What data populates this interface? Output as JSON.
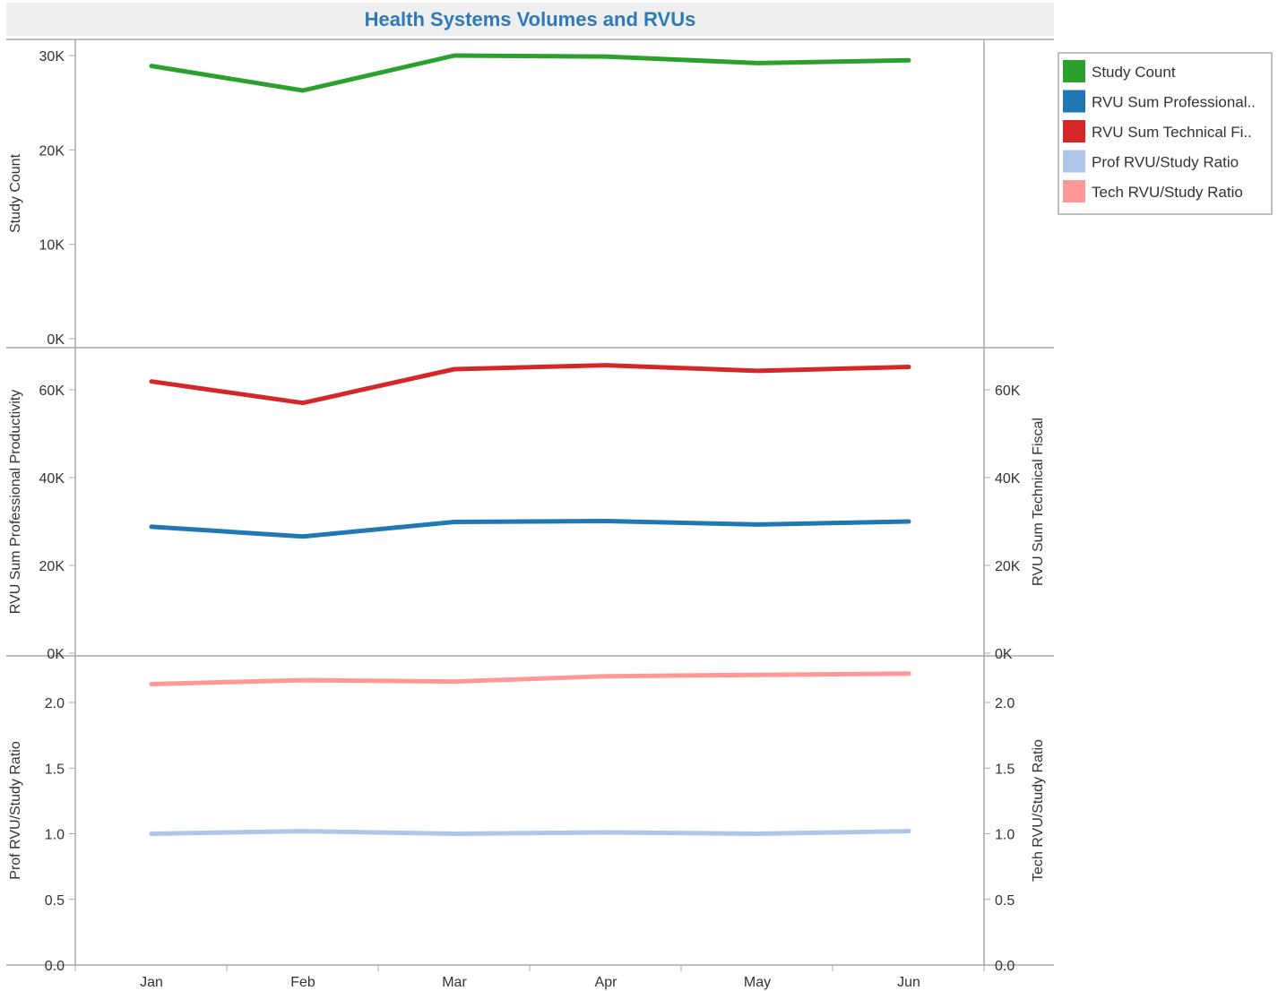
{
  "chart_data": {
    "type": "line",
    "title": "Health Systems Volumes and RVUs",
    "title_color": "#2e7ab8",
    "x": [
      "Jan",
      "Feb",
      "Mar",
      "Apr",
      "May",
      "Jun"
    ],
    "panels": [
      {
        "id": "volume",
        "left_axis": {
          "label": "Study Count",
          "ylim": [
            0,
            30000
          ],
          "ticks": [
            0,
            10000,
            20000,
            30000
          ],
          "tick_labels": [
            "0K",
            "10K",
            "20K",
            "30K"
          ]
        },
        "right_axis": null,
        "series": [
          {
            "name": "Study Count",
            "axis": "left",
            "color": "#2ca02c",
            "values": [
              28900,
              26300,
              30000,
              29900,
              29200,
              29500
            ]
          }
        ]
      },
      {
        "id": "rvu",
        "left_axis": {
          "label": "RVU Sum Professional Productivity",
          "ylim": [
            0,
            60000
          ],
          "ticks": [
            0,
            20000,
            40000,
            60000
          ],
          "tick_labels": [
            "0K",
            "20K",
            "40K",
            "60K"
          ]
        },
        "right_axis": {
          "label": "RVU Sum Technical Fiscal",
          "ylim": [
            0,
            60000
          ],
          "ticks": [
            0,
            20000,
            40000,
            60000
          ],
          "tick_labels": [
            "0K",
            "20K",
            "40K",
            "60K"
          ]
        },
        "series": [
          {
            "name": "RVU Sum Professional..",
            "axis": "left",
            "color": "#1f77b4",
            "values": [
              28800,
              26600,
              29900,
              30100,
              29300,
              30000
            ]
          },
          {
            "name": "RVU Sum Technical Fi..",
            "axis": "right",
            "color": "#d62728",
            "values": [
              61900,
              57000,
              64700,
              65600,
              64300,
              65200
            ]
          }
        ]
      },
      {
        "id": "ratio",
        "left_axis": {
          "label": "Prof RVU/Study Ratio",
          "ylim": [
            0,
            2.0
          ],
          "ticks": [
            0,
            0.5,
            1.0,
            1.5,
            2.0
          ],
          "tick_labels": [
            "0.0",
            "0.5",
            "1.0",
            "1.5",
            "2.0"
          ]
        },
        "right_axis": {
          "label": "Tech RVU/Study Ratio",
          "ylim": [
            0,
            2.0
          ],
          "ticks": [
            0,
            0.5,
            1.0,
            1.5,
            2.0
          ],
          "tick_labels": [
            "0.0",
            "0.5",
            "1.0",
            "1.5",
            "2.0"
          ]
        },
        "series": [
          {
            "name": "Prof RVU/Study Ratio",
            "axis": "left",
            "color": "#aec7e8",
            "values": [
              1.0,
              1.02,
              1.0,
              1.01,
              1.0,
              1.02
            ]
          },
          {
            "name": "Tech RVU/Study Ratio",
            "axis": "right",
            "color": "#ff9896",
            "values": [
              2.14,
              2.17,
              2.16,
              2.2,
              2.21,
              2.22
            ]
          }
        ]
      }
    ],
    "legend": {
      "placement": "top-right",
      "entries": [
        {
          "label": "Study Count",
          "color": "#2ca02c"
        },
        {
          "label": "RVU Sum Professional..",
          "color": "#1f77b4"
        },
        {
          "label": "RVU Sum Technical Fi..",
          "color": "#d62728"
        },
        {
          "label": "Prof RVU/Study Ratio",
          "color": "#aec7e8"
        },
        {
          "label": "Tech RVU/Study Ratio",
          "color": "#ff9896"
        }
      ]
    },
    "grid": false
  }
}
